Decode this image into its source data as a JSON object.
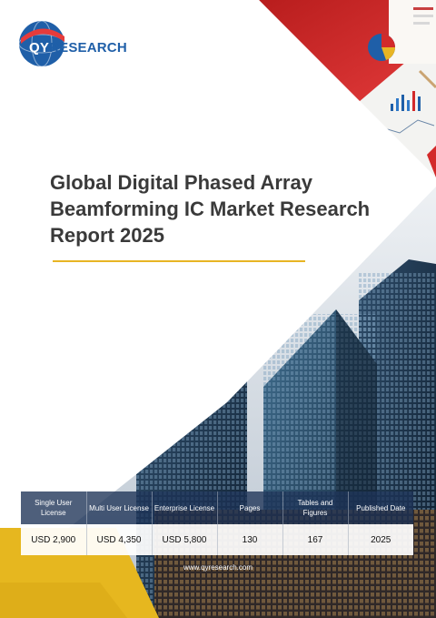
{
  "brand": {
    "logo_mark": "QY",
    "logo_rest": "RESEARCH"
  },
  "report": {
    "title": "Global Digital Phased Array Beamforming IC Market Research Report 2025"
  },
  "info_table": {
    "headers": [
      "Single User License",
      "Multi User License",
      "Enterprise License",
      "Pages",
      "Tables and Figures",
      "Published Date"
    ],
    "values": [
      "USD 2,900",
      "USD 4,350",
      "USD 5,800",
      "130",
      "167",
      "2025"
    ]
  },
  "footer": {
    "url": "www.qyresearch.com"
  },
  "colors": {
    "brand_blue": "#1f5fa8",
    "accent_red": "#d32a2a",
    "accent_yellow": "#e8b524",
    "table_header": "#1c3256"
  },
  "images": {
    "top_right": "business-charts-photo",
    "bottom": "city-skyscrapers-photo"
  }
}
